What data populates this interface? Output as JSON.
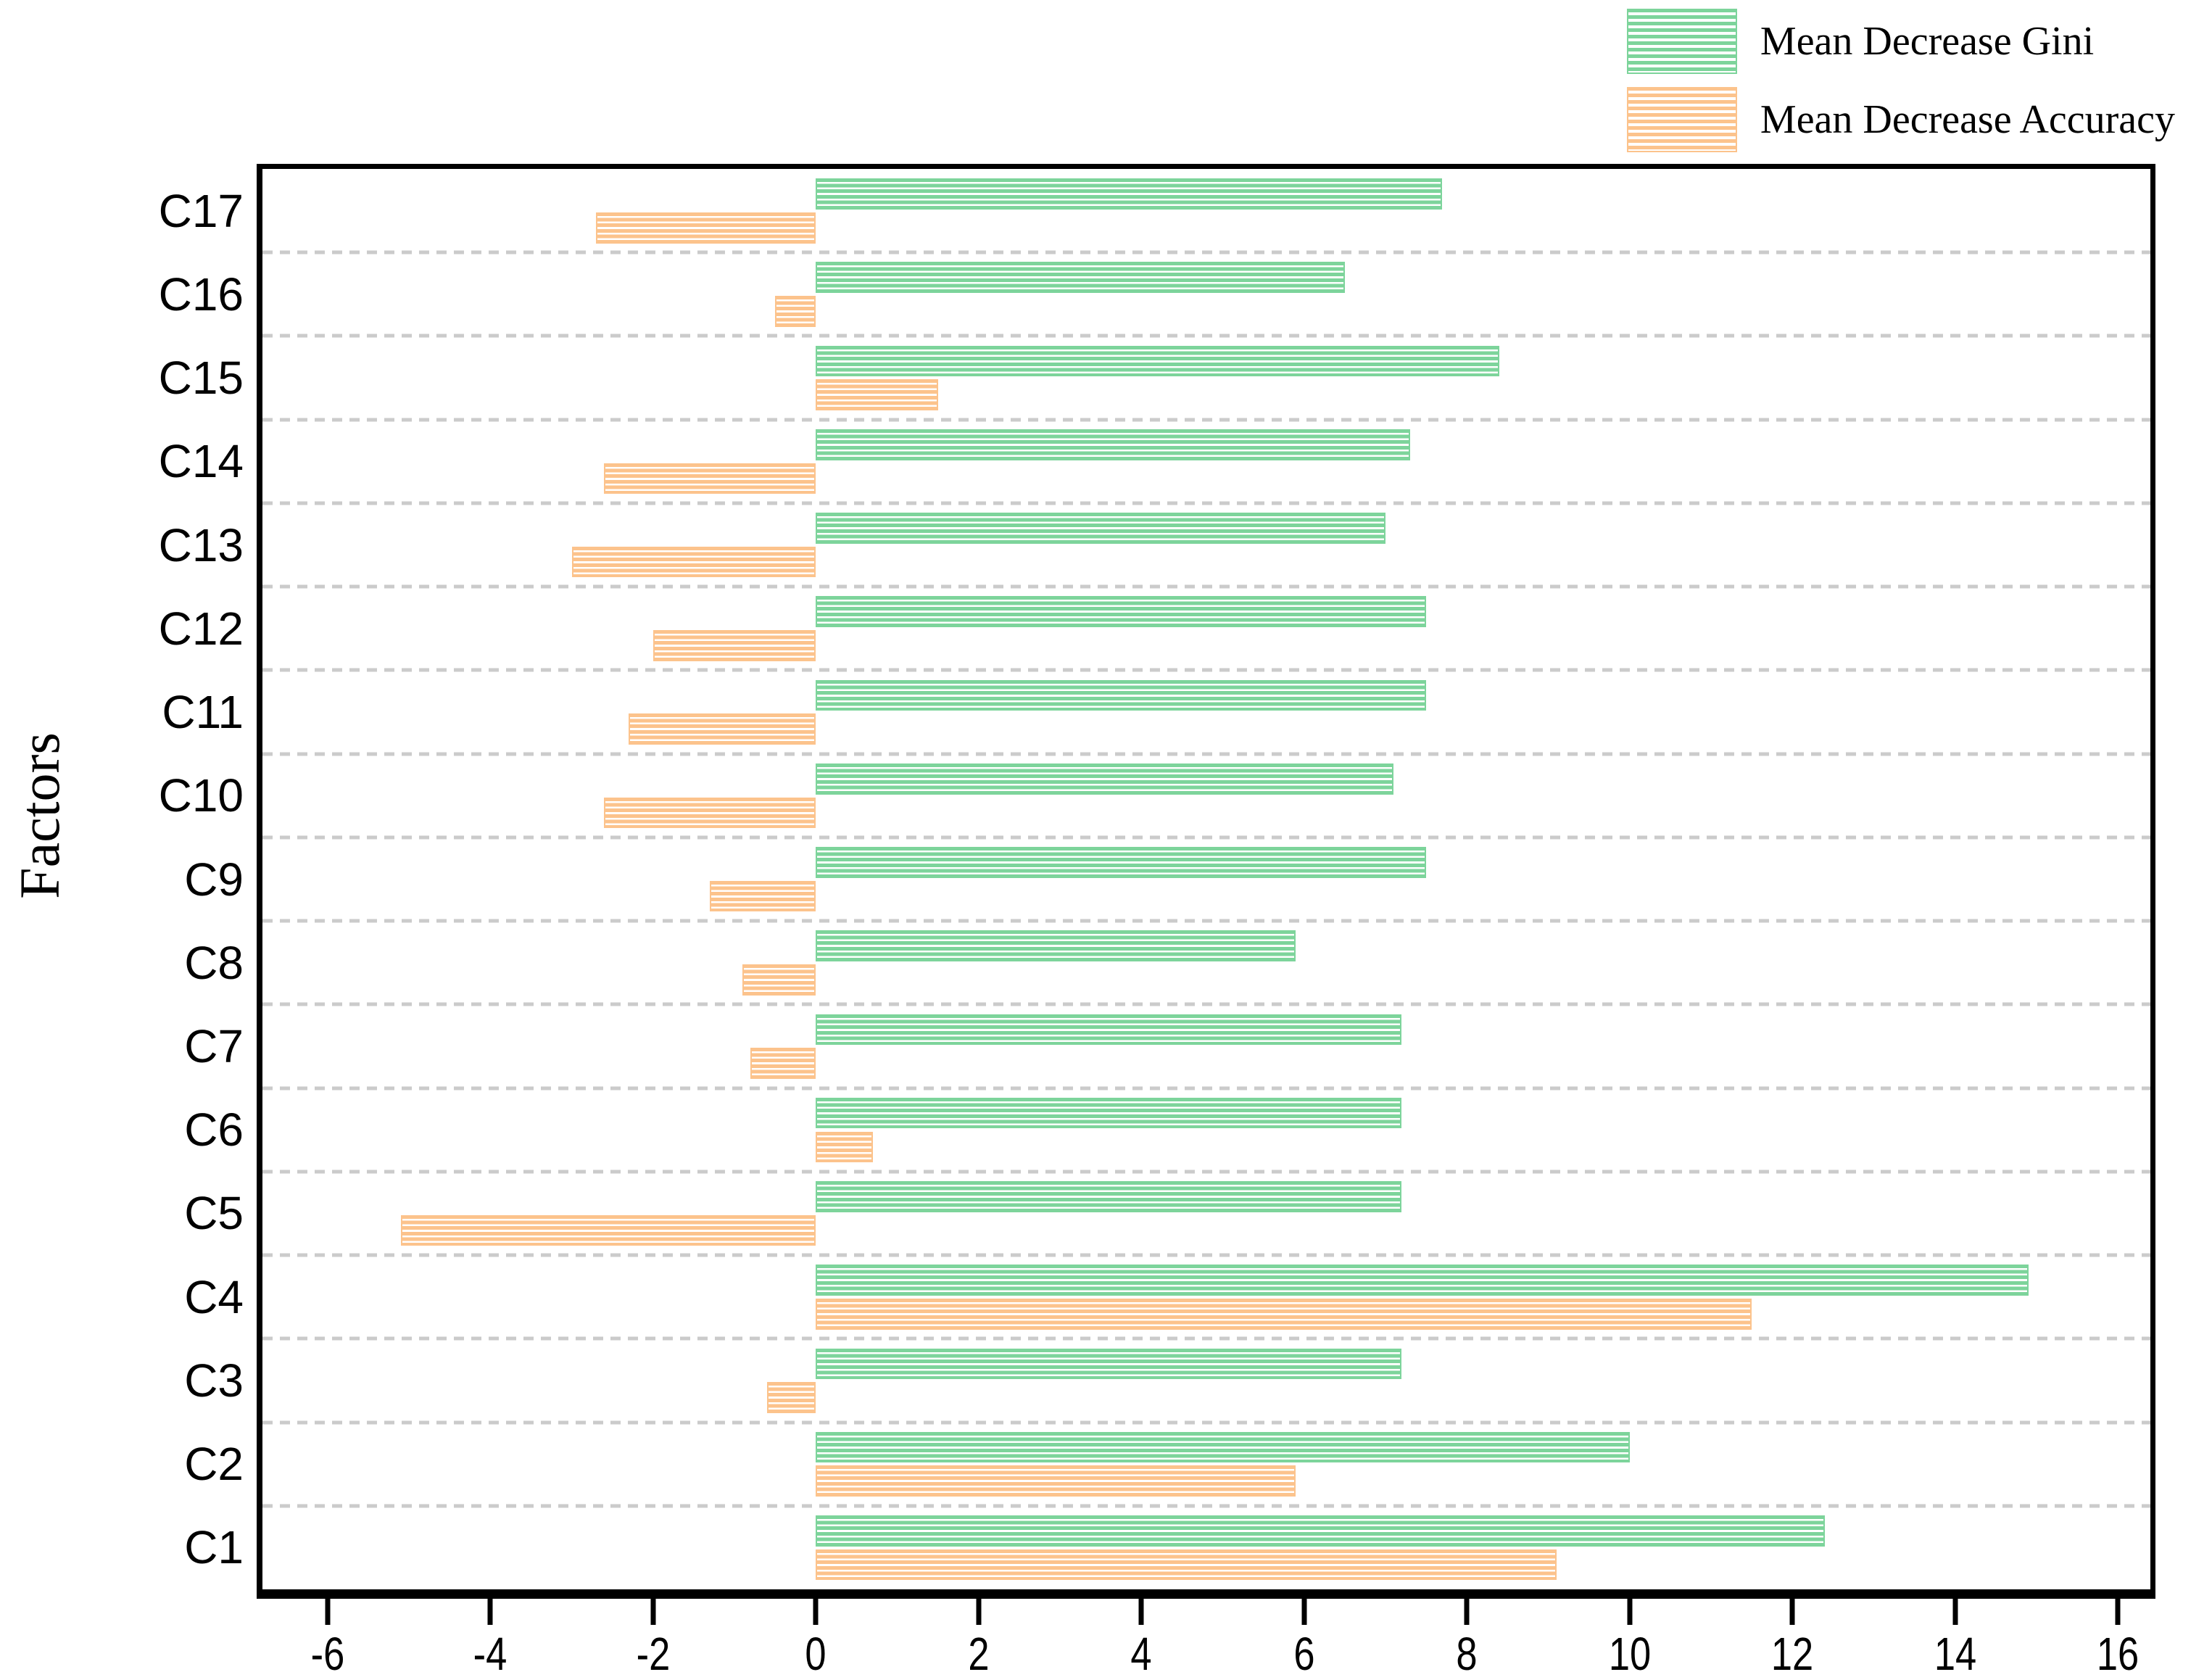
{
  "figure": {
    "background": "#ffffff"
  },
  "legend": {
    "items": [
      {
        "label": "Mean Decrease Gini",
        "color": "#7dd49b",
        "swatch": "horizontal-stripe-hatch"
      },
      {
        "label": "Mean Decrease Accuracy",
        "color": "#fcc38c",
        "swatch": "horizontal-stripe-hatch"
      }
    ]
  },
  "axes": {
    "y_title": "Factors",
    "x_tick_labels": [
      "-6",
      "-4",
      "-2",
      "0",
      "2",
      "4",
      "6",
      "8",
      "10",
      "12",
      "14",
      "16"
    ],
    "x_tick_values": [
      -6,
      -4,
      -2,
      0,
      2,
      4,
      6,
      8,
      10,
      12,
      14,
      16
    ]
  },
  "chart_data": {
    "type": "bar",
    "orientation": "horizontal",
    "title": "",
    "xlabel": "",
    "ylabel": "Factors",
    "categories": [
      "C1",
      "C2",
      "C3",
      "C4",
      "C5",
      "C6",
      "C7",
      "C8",
      "C9",
      "C10",
      "C11",
      "C12",
      "C13",
      "C14",
      "C15",
      "C16",
      "C17"
    ],
    "category_display_order_top_to_bottom": [
      "C17",
      "C16",
      "C15",
      "C14",
      "C13",
      "C12",
      "C11",
      "C10",
      "C9",
      "C8",
      "C7",
      "C6",
      "C5",
      "C4",
      "C3",
      "C2",
      "C1"
    ],
    "series": [
      {
        "name": "Mean Decrease Gini",
        "color": "#7dd49b",
        "values": [
          12.4,
          10.0,
          7.2,
          14.9,
          7.2,
          7.2,
          7.2,
          5.9,
          7.5,
          7.1,
          7.5,
          7.5,
          7.0,
          7.3,
          8.4,
          6.5,
          7.7
        ]
      },
      {
        "name": "Mean Decrease Accuracy",
        "color": "#fcc38c",
        "values": [
          9.1,
          5.9,
          -0.6,
          11.5,
          -5.1,
          0.7,
          -0.8,
          -0.9,
          -1.3,
          -2.6,
          -2.3,
          -2.0,
          -3.0,
          -2.6,
          1.5,
          -0.5,
          -2.7
        ]
      }
    ],
    "xlim": [
      -6.8,
      16.4
    ],
    "x_ticks": [
      -6,
      -4,
      -2,
      0,
      2,
      4,
      6,
      8,
      10,
      12,
      14,
      16
    ],
    "grid": "horizontal dashed lines between category bands",
    "gridline_color": "#cbcbcb",
    "legend_position": "top-right",
    "bar_style": "horizontal-stripe hatch fill on white"
  }
}
